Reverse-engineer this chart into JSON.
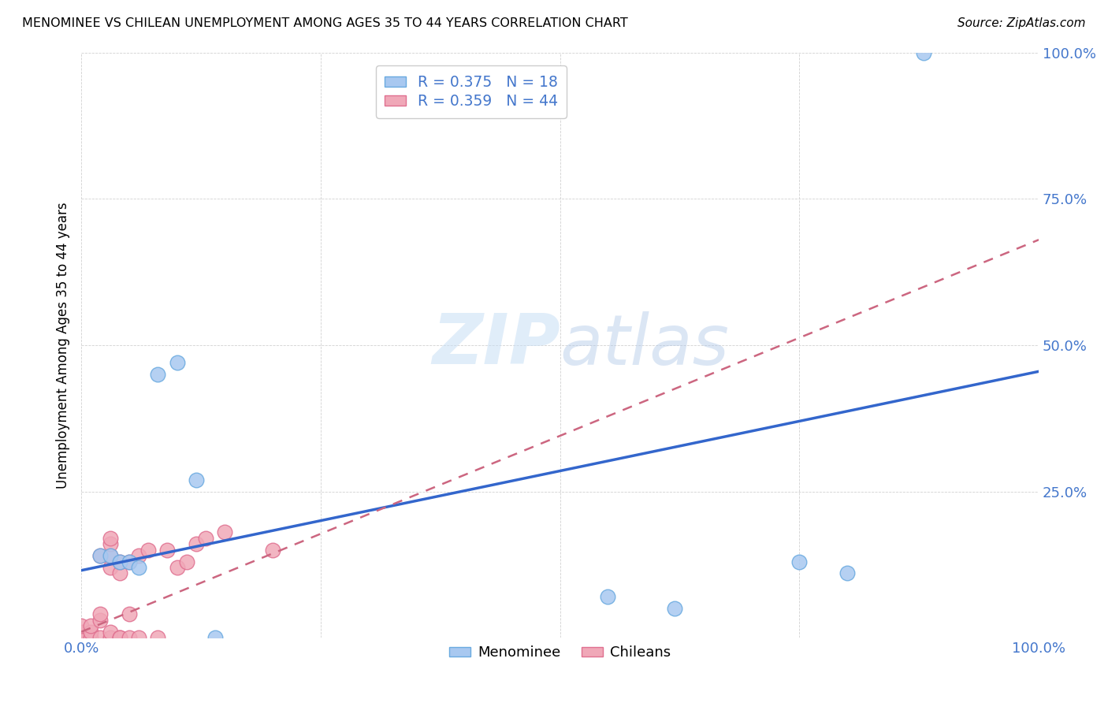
{
  "title": "MENOMINEE VS CHILEAN UNEMPLOYMENT AMONG AGES 35 TO 44 YEARS CORRELATION CHART",
  "source": "Source: ZipAtlas.com",
  "ylabel": "Unemployment Among Ages 35 to 44 years",
  "xlim": [
    0,
    1.0
  ],
  "ylim": [
    0,
    1.0
  ],
  "xtick_labels": [
    "0.0%",
    "",
    "",
    "",
    "100.0%"
  ],
  "xtick_positions": [
    0,
    0.25,
    0.5,
    0.75,
    1.0
  ],
  "ytick_labels": [
    "",
    "25.0%",
    "50.0%",
    "75.0%",
    "100.0%"
  ],
  "ytick_positions": [
    0,
    0.25,
    0.5,
    0.75,
    1.0
  ],
  "menominee_color": "#a8c8f0",
  "menominee_edge_color": "#6aaae0",
  "chilean_color": "#f0a8b8",
  "chilean_edge_color": "#e07090",
  "menominee_R": 0.375,
  "menominee_N": 18,
  "chilean_R": 0.359,
  "chilean_N": 44,
  "legend_label_menominee": "Menominee",
  "legend_label_chilean": "Chileans",
  "menominee_line_color": "#3366cc",
  "chilean_line_color": "#cc6680",
  "watermark_zip": "ZIP",
  "watermark_atlas": "atlas",
  "menominee_x": [
    0.02,
    0.03,
    0.04,
    0.05,
    0.06,
    0.08,
    0.1,
    0.12,
    0.14,
    0.55,
    0.62,
    0.75,
    0.8,
    0.88
  ],
  "menominee_y": [
    0.14,
    0.14,
    0.13,
    0.13,
    0.12,
    0.45,
    0.47,
    0.27,
    0.0,
    0.07,
    0.05,
    0.13,
    0.11,
    1.0
  ],
  "chilean_x": [
    0.0,
    0.0,
    0.0,
    0.0,
    0.0,
    0.0,
    0.0,
    0.01,
    0.01,
    0.01,
    0.02,
    0.02,
    0.02,
    0.02,
    0.03,
    0.03,
    0.03,
    0.03,
    0.03,
    0.03,
    0.04,
    0.04,
    0.04,
    0.04,
    0.05,
    0.05,
    0.05,
    0.06,
    0.06,
    0.07,
    0.08,
    0.09,
    0.1,
    0.11,
    0.12,
    0.13,
    0.15,
    0.2
  ],
  "chilean_y": [
    0.0,
    0.0,
    0.0,
    0.0,
    0.0,
    0.01,
    0.02,
    0.0,
    0.01,
    0.02,
    0.0,
    0.03,
    0.04,
    0.14,
    0.0,
    0.01,
    0.12,
    0.14,
    0.16,
    0.17,
    0.0,
    0.0,
    0.11,
    0.13,
    0.0,
    0.04,
    0.13,
    0.0,
    0.14,
    0.15,
    0.0,
    0.15,
    0.12,
    0.13,
    0.16,
    0.17,
    0.18,
    0.15
  ],
  "menominee_line_x": [
    0.0,
    1.0
  ],
  "menominee_line_y": [
    0.115,
    0.455
  ],
  "chilean_line_x": [
    0.0,
    0.22
  ],
  "chilean_line_y": [
    0.01,
    0.16
  ]
}
